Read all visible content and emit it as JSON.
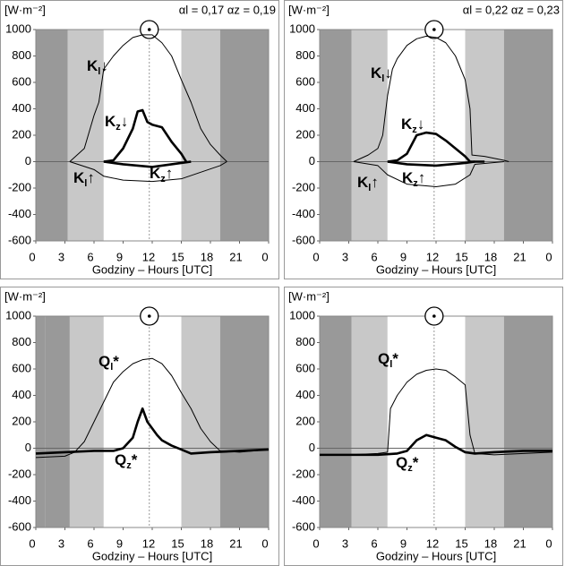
{
  "chart_data": [
    {
      "type": "line",
      "y_label": "[W·m⁻²]",
      "x_label": "Godziny – Hours [UTC]",
      "annotation": "αl = 0,17 αz = 0,19",
      "xlim": [
        0,
        24
      ],
      "xticks": [
        0,
        3,
        6,
        9,
        12,
        15,
        18,
        {
          "value": 21,
          "label": "21"
        },
        {
          "value": 24,
          "label": "0"
        }
      ],
      "ylim": [
        -600,
        1000
      ],
      "yticks": [
        -600,
        -400,
        -200,
        0,
        200,
        400,
        600,
        800,
        1000
      ],
      "noon": 11.7,
      "bands": [
        {
          "from": 0,
          "to": 3.3,
          "color": "#999999"
        },
        {
          "from": 3.3,
          "to": 7,
          "color": "#c8c8c8"
        },
        {
          "from": 7,
          "to": 15,
          "color": "#ffffff"
        },
        {
          "from": 15,
          "to": 19,
          "color": "#c8c8c8"
        },
        {
          "from": 19,
          "to": 24,
          "color": "#999999"
        }
      ],
      "series": [
        {
          "name": "Kl↓",
          "color": "#000000",
          "weight": "thin",
          "x": [
            3.5,
            5,
            6,
            6.5,
            7,
            8,
            9,
            10,
            11,
            12,
            13,
            14,
            15,
            16,
            17,
            18,
            19,
            19.7
          ],
          "values": [
            0,
            100,
            350,
            450,
            700,
            800,
            880,
            940,
            960,
            960,
            900,
            800,
            620,
            450,
            250,
            130,
            50,
            0
          ]
        },
        {
          "name": "Kl↑",
          "color": "#000000",
          "weight": "thin",
          "x": [
            3.5,
            6,
            7,
            9,
            12,
            15,
            17,
            19,
            19.7
          ],
          "values": [
            0,
            -60,
            -110,
            -140,
            -150,
            -130,
            -80,
            -30,
            0
          ]
        },
        {
          "name": "Kz↓",
          "color": "#000000",
          "weight": "bold",
          "x": [
            7,
            8,
            9,
            10,
            10.5,
            11,
            11.5,
            12,
            13,
            14,
            15,
            15.5
          ],
          "values": [
            0,
            10,
            100,
            250,
            380,
            390,
            300,
            280,
            260,
            150,
            60,
            0
          ]
        },
        {
          "name": "Kz↑",
          "color": "#000000",
          "weight": "bold",
          "x": [
            7,
            9,
            12,
            15,
            16
          ],
          "values": [
            0,
            -20,
            -40,
            -10,
            0
          ]
        }
      ]
    },
    {
      "type": "line",
      "y_label": "[W·m⁻²]",
      "x_label": "Godziny – Hours [UTC]",
      "annotation": "αl = 0,22 αz = 0,23",
      "xlim": [
        0,
        24
      ],
      "xticks": [
        0,
        3,
        6,
        9,
        12,
        15,
        18,
        {
          "value": 21,
          "label": "21"
        },
        {
          "value": 24,
          "label": "0"
        }
      ],
      "ylim": [
        -600,
        1000
      ],
      "yticks": [
        -600,
        -400,
        -200,
        0,
        200,
        400,
        600,
        800,
        1000
      ],
      "noon": 11.8,
      "bands": [
        {
          "from": 0,
          "to": 3.3,
          "color": "#999999"
        },
        {
          "from": 3.3,
          "to": 7,
          "color": "#c8c8c8"
        },
        {
          "from": 7,
          "to": 15,
          "color": "#ffffff"
        },
        {
          "from": 15,
          "to": 19,
          "color": "#c8c8c8"
        },
        {
          "from": 19,
          "to": 24,
          "color": "#999999"
        }
      ],
      "series": [
        {
          "name": "Kl↓",
          "color": "#000000",
          "weight": "thin",
          "x": [
            3.5,
            5,
            6,
            6.5,
            7,
            7.5,
            8,
            9,
            10,
            11,
            12,
            13,
            14,
            15,
            15.5,
            15.7,
            17,
            19,
            19.5
          ],
          "values": [
            0,
            50,
            100,
            200,
            500,
            700,
            780,
            880,
            930,
            950,
            940,
            900,
            800,
            620,
            400,
            50,
            40,
            10,
            0
          ]
        },
        {
          "name": "Kl↑",
          "color": "#000000",
          "weight": "thin",
          "x": [
            3.5,
            6,
            7,
            9,
            12,
            14,
            15.5,
            16,
            19
          ],
          "values": [
            0,
            -30,
            -100,
            -170,
            -190,
            -170,
            -100,
            -20,
            0
          ]
        },
        {
          "name": "Kz↓",
          "color": "#000000",
          "weight": "bold",
          "x": [
            7,
            8,
            9,
            10,
            11,
            12,
            13,
            14,
            15,
            15.5,
            17
          ],
          "values": [
            0,
            10,
            60,
            200,
            220,
            210,
            160,
            100,
            40,
            0,
            0
          ]
        },
        {
          "name": "Kz↑",
          "color": "#000000",
          "weight": "bold",
          "x": [
            7,
            9,
            12,
            15,
            16
          ],
          "values": [
            0,
            -20,
            -30,
            -10,
            0
          ]
        }
      ]
    },
    {
      "type": "line",
      "y_label": "[W·m⁻²]",
      "x_label": "Godziny – Hours [UTC]",
      "xlim": [
        0,
        24
      ],
      "xticks": [
        0,
        3,
        6,
        9,
        12,
        15,
        18,
        {
          "value": 21,
          "label": "21"
        },
        {
          "value": 24,
          "label": "0"
        }
      ],
      "ylim": [
        -600,
        1000
      ],
      "yticks": [
        -600,
        -400,
        -200,
        0,
        200,
        400,
        600,
        800,
        1000
      ],
      "noon": 11.7,
      "bands": [
        {
          "from": 0,
          "to": 1,
          "color": "#999999"
        },
        {
          "from": 1,
          "to": 3.5,
          "color": "#999999"
        },
        {
          "from": 3.5,
          "to": 7,
          "color": "#c8c8c8"
        },
        {
          "from": 7,
          "to": 15,
          "color": "#ffffff"
        },
        {
          "from": 15,
          "to": 19,
          "color": "#c8c8c8"
        },
        {
          "from": 19,
          "to": 24,
          "color": "#999999"
        }
      ],
      "series": [
        {
          "name": "Ql*",
          "color": "#000000",
          "weight": "thin",
          "x": [
            0,
            3,
            4,
            5,
            6,
            7,
            8,
            9,
            10,
            11,
            12,
            13,
            14,
            15,
            16,
            17,
            18,
            19,
            21,
            24
          ],
          "values": [
            -70,
            -60,
            -30,
            50,
            200,
            350,
            500,
            580,
            640,
            670,
            680,
            640,
            550,
            420,
            300,
            150,
            50,
            -20,
            -30,
            -10
          ]
        },
        {
          "name": "Qz*",
          "color": "#000000",
          "weight": "bold",
          "x": [
            0,
            3,
            6,
            8,
            9,
            10,
            10.5,
            11,
            11.5,
            12,
            12.5,
            13,
            14,
            15,
            16,
            18,
            21,
            24
          ],
          "values": [
            -40,
            -30,
            -20,
            -20,
            0,
            80,
            200,
            300,
            200,
            150,
            100,
            60,
            20,
            -10,
            -40,
            -30,
            -20,
            -10
          ]
        }
      ]
    },
    {
      "type": "line",
      "y_label": "[W·m⁻²]",
      "x_label": "Godziny – Hours [UTC]",
      "xlim": [
        0,
        24
      ],
      "xticks": [
        0,
        3,
        6,
        9,
        12,
        15,
        18,
        {
          "value": 21,
          "label": "21"
        },
        {
          "value": 24,
          "label": "0"
        }
      ],
      "ylim": [
        -600,
        1000
      ],
      "yticks": [
        -600,
        -400,
        -200,
        0,
        200,
        400,
        600,
        800,
        1000
      ],
      "noon": 11.8,
      "bands": [
        {
          "from": 0,
          "to": 3.3,
          "color": "#999999"
        },
        {
          "from": 3.3,
          "to": 7,
          "color": "#c8c8c8"
        },
        {
          "from": 7,
          "to": 15,
          "color": "#ffffff"
        },
        {
          "from": 15,
          "to": 19,
          "color": "#c8c8c8"
        },
        {
          "from": 19,
          "to": 24,
          "color": "#999999"
        }
      ],
      "series": [
        {
          "name": "Ql*",
          "color": "#000000",
          "weight": "thin",
          "x": [
            0,
            3,
            6,
            7,
            7.3,
            8,
            9,
            10,
            11,
            12,
            13,
            14,
            15,
            15.5,
            16,
            18,
            21,
            24
          ],
          "values": [
            -50,
            -50,
            -40,
            -30,
            300,
            400,
            500,
            560,
            590,
            600,
            590,
            540,
            480,
            100,
            -40,
            -50,
            -40,
            -30
          ]
        },
        {
          "name": "Qz*",
          "color": "#000000",
          "weight": "bold",
          "x": [
            0,
            3,
            6,
            8,
            9,
            10,
            11,
            12,
            13,
            14,
            15,
            16,
            18,
            21,
            24
          ],
          "values": [
            -50,
            -50,
            -50,
            -40,
            -20,
            60,
            100,
            80,
            60,
            10,
            -30,
            -40,
            -30,
            -20,
            -20
          ]
        }
      ]
    }
  ]
}
